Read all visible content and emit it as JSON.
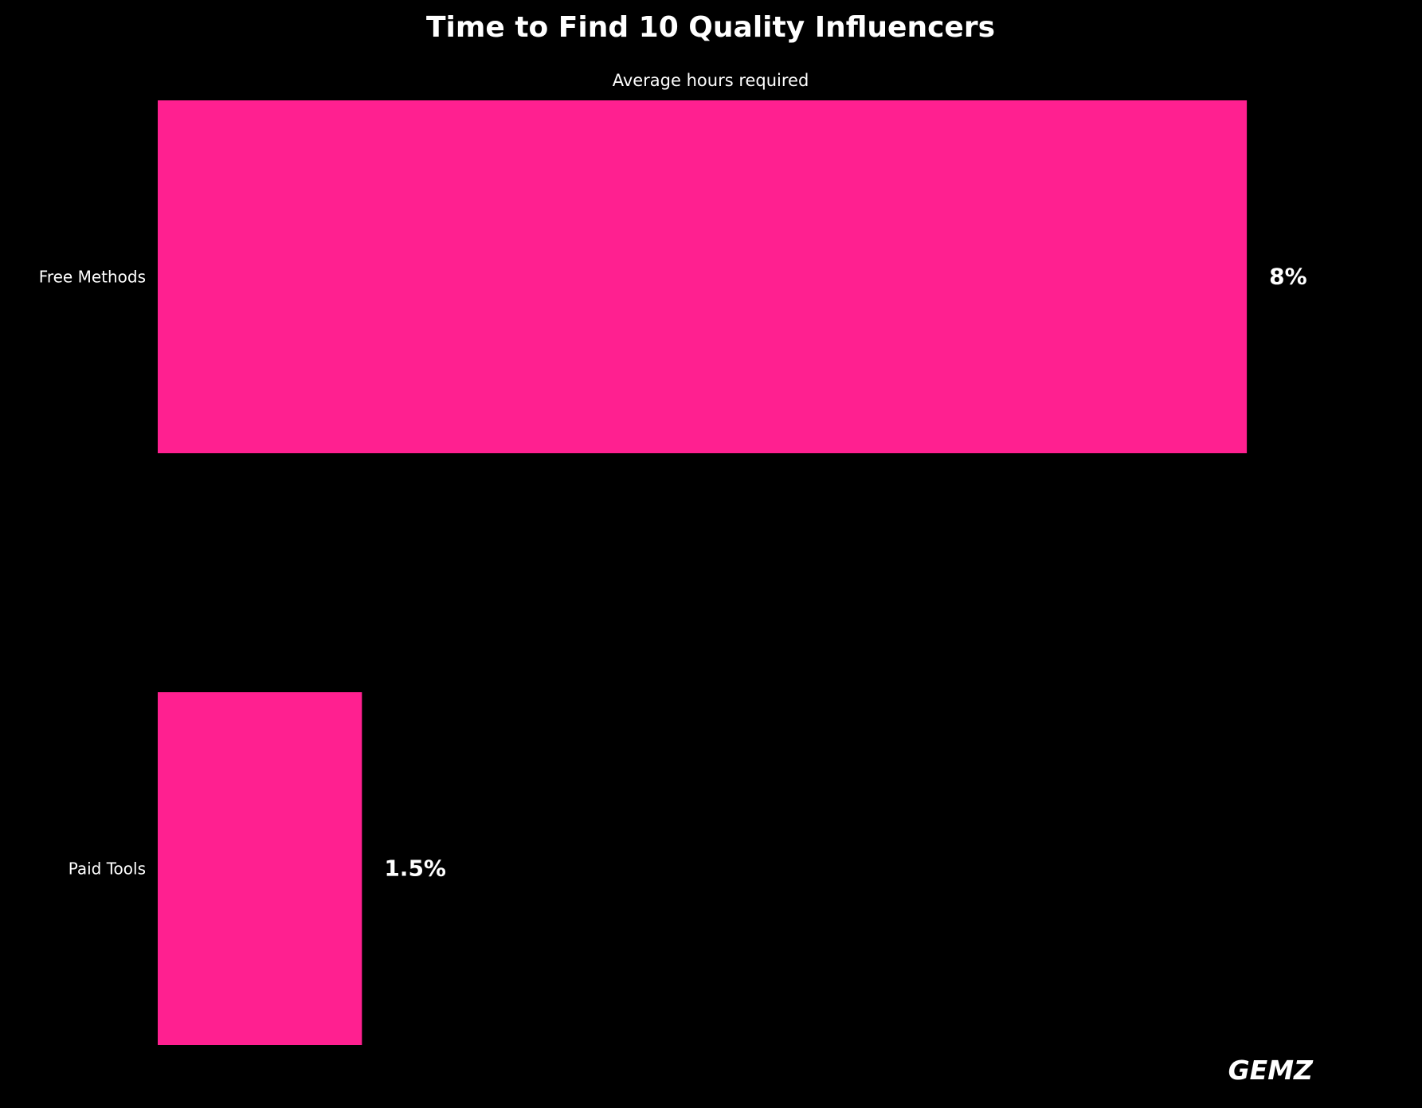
{
  "chart_data": {
    "type": "bar",
    "orientation": "horizontal",
    "title": "Time to Find 10 Quality Influencers",
    "subtitle": "Average hours required",
    "xlabel": "",
    "ylabel": "",
    "categories": [
      "Free Methods",
      "Paid Tools"
    ],
    "values": [
      8,
      1.5
    ],
    "data_labels": [
      "8%",
      "1.5%"
    ],
    "xlim": [
      0,
      9
    ],
    "grid": false,
    "axes_visible": false,
    "bar_color": "#FF2090",
    "background_color": "#000000",
    "text_color": "#FFFFFF"
  },
  "watermark": {
    "text": "GEMZ",
    "color": "#FF2090"
  }
}
